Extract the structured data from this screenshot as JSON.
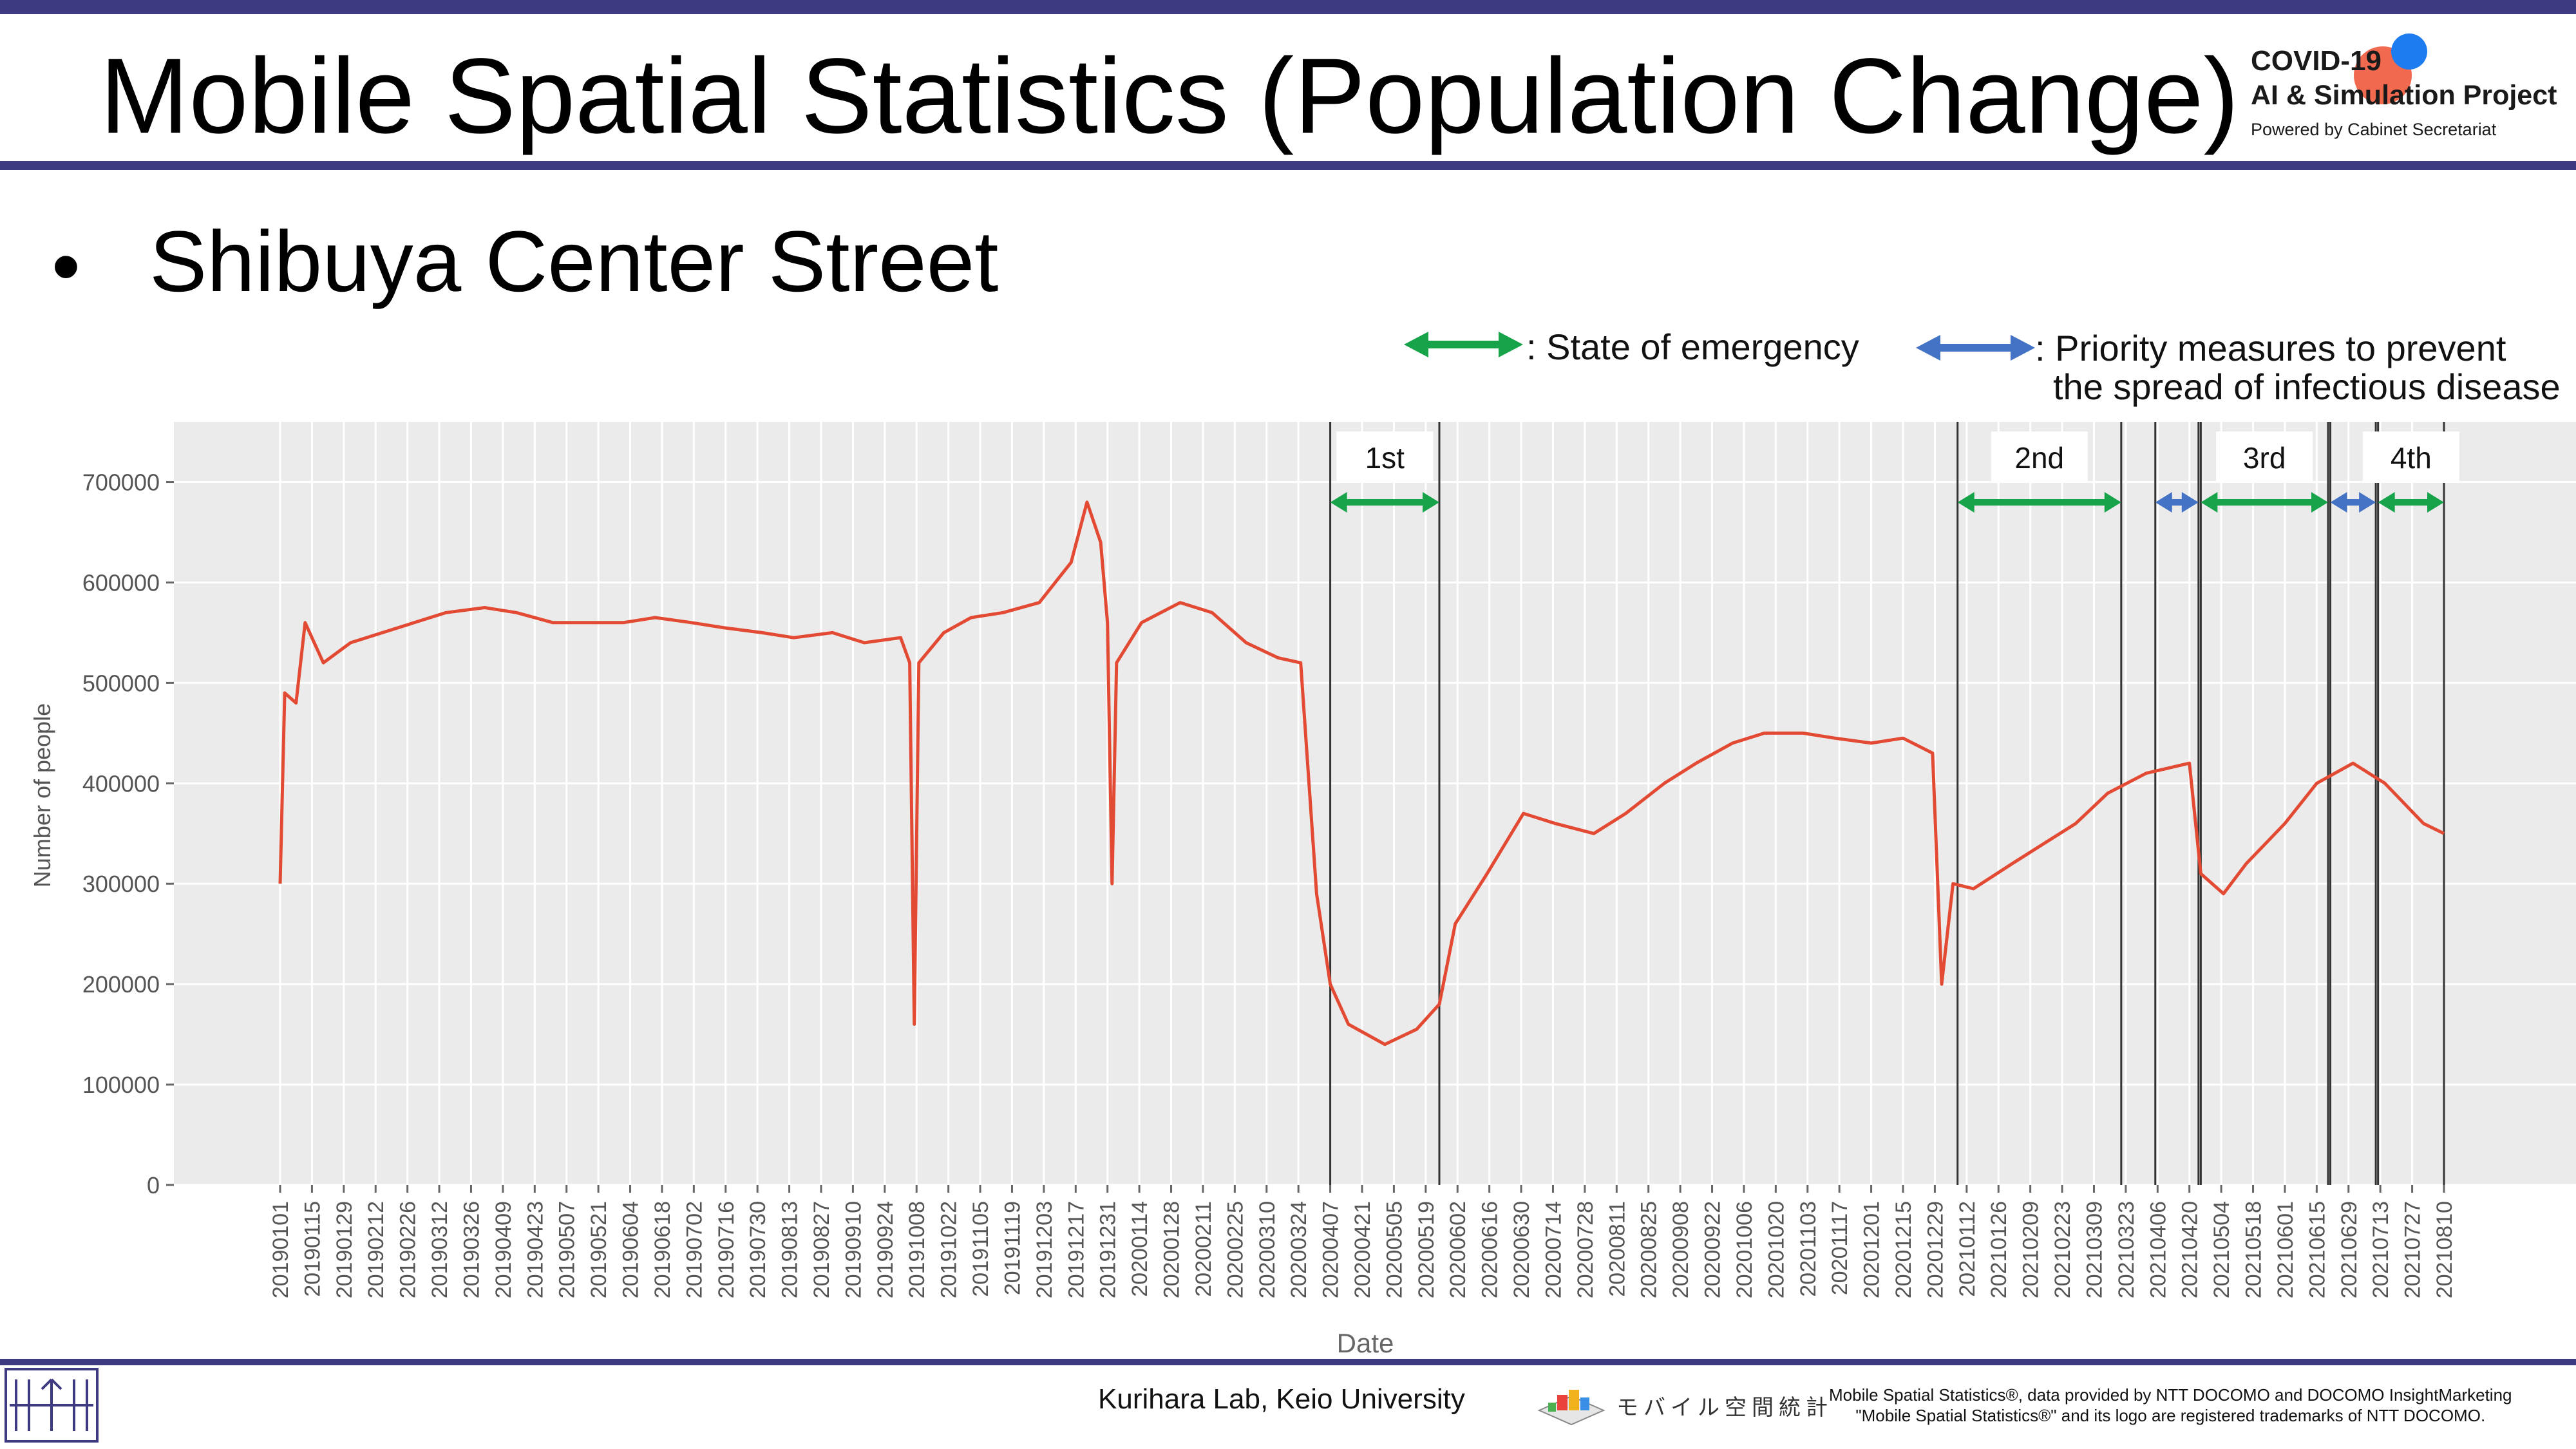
{
  "header": {
    "title": "Mobile Spatial Statistics (Population Change)",
    "logo_line1": "COVID-19",
    "logo_line2": "AI & Simulation Project",
    "logo_line3": "Powered by Cabinet Secretariat"
  },
  "bullet": "•",
  "subtitle": "Shibuya Center Street",
  "legend": {
    "emergency_label": ": State of emergency",
    "priority_label_1": ": Priority measures to prevent",
    "priority_label_2": "the spread of infectious disease",
    "emergency_color": "#16a34a",
    "priority_color": "#4472c4"
  },
  "footer": {
    "lab": "Kurihara Lab, Keio University",
    "mobile_logo_text": "モバイル空間統計",
    "note_line1": "Mobile Spatial Statistics®, data provided by NTT DOCOMO and DOCOMO InsightMarketing",
    "note_line2": "\"Mobile Spatial Statistics®\" and its logo are registered trademarks of NTT DOCOMO."
  },
  "chart_data": {
    "type": "line",
    "xlabel": "Date",
    "ylabel": "Number of people",
    "ylim": [
      0,
      760000
    ],
    "yticks": [
      0,
      100000,
      200000,
      300000,
      400000,
      500000,
      600000,
      700000
    ],
    "grid": true,
    "line_color": "#e34a33",
    "panel_color": "#ebebeb",
    "x_start": "20190101",
    "x_end": "20210810",
    "x_tick_labels": [
      "20190101",
      "20190115",
      "20190129",
      "20190212",
      "20190226",
      "20190312",
      "20190326",
      "20190409",
      "20190423",
      "20190507",
      "20190521",
      "20190604",
      "20190618",
      "20190702",
      "20190716",
      "20190730",
      "20190813",
      "20190827",
      "20190910",
      "20190924",
      "20191008",
      "20191022",
      "20191105",
      "20191119",
      "20191203",
      "20191217",
      "20191231",
      "20200114",
      "20200128",
      "20200211",
      "20200225",
      "20200310",
      "20200324",
      "20200407",
      "20200421",
      "20200505",
      "20200519",
      "20200602",
      "20200616",
      "20200630",
      "20200714",
      "20200728",
      "20200811",
      "20200825",
      "20200908",
      "20200922",
      "20201006",
      "20201020",
      "20201103",
      "20201117",
      "20201201",
      "20201215",
      "20201229",
      "20210112",
      "20210126",
      "20210209",
      "20210223",
      "20210309",
      "20210323",
      "20210406",
      "20210420",
      "20210504",
      "20210518",
      "20210601",
      "20210615",
      "20210629",
      "20210713",
      "20210727",
      "20210810"
    ],
    "series": [
      {
        "values_by_date": [
          [
            "20190101",
            300000
          ],
          [
            "20190103",
            490000
          ],
          [
            "20190108",
            480000
          ],
          [
            "20190112",
            560000
          ],
          [
            "20190120",
            520000
          ],
          [
            "20190201",
            540000
          ],
          [
            "20190215",
            550000
          ],
          [
            "20190301",
            560000
          ],
          [
            "20190315",
            570000
          ],
          [
            "20190401",
            575000
          ],
          [
            "20190415",
            570000
          ],
          [
            "20190501",
            560000
          ],
          [
            "20190515",
            560000
          ],
          [
            "20190601",
            560000
          ],
          [
            "20190615",
            565000
          ],
          [
            "20190701",
            560000
          ],
          [
            "20190715",
            555000
          ],
          [
            "20190801",
            550000
          ],
          [
            "20190815",
            545000
          ],
          [
            "20190901",
            550000
          ],
          [
            "20190915",
            540000
          ],
          [
            "20191001",
            545000
          ],
          [
            "20191005",
            520000
          ],
          [
            "20191007",
            160000
          ],
          [
            "20191009",
            520000
          ],
          [
            "20191020",
            550000
          ],
          [
            "20191101",
            565000
          ],
          [
            "20191115",
            570000
          ],
          [
            "20191201",
            580000
          ],
          [
            "20191215",
            620000
          ],
          [
            "20191222",
            680000
          ],
          [
            "20191228",
            640000
          ],
          [
            "20191231",
            560000
          ],
          [
            "20200102",
            300000
          ],
          [
            "20200104",
            520000
          ],
          [
            "20200115",
            560000
          ],
          [
            "20200201",
            580000
          ],
          [
            "20200215",
            570000
          ],
          [
            "20200301",
            540000
          ],
          [
            "20200315",
            525000
          ],
          [
            "20200325",
            520000
          ],
          [
            "20200401",
            290000
          ],
          [
            "20200407",
            200000
          ],
          [
            "20200415",
            160000
          ],
          [
            "20200501",
            140000
          ],
          [
            "20200515",
            155000
          ],
          [
            "20200525",
            180000
          ],
          [
            "20200601",
            260000
          ],
          [
            "20200615",
            310000
          ],
          [
            "20200701",
            370000
          ],
          [
            "20200715",
            360000
          ],
          [
            "20200801",
            350000
          ],
          [
            "20200815",
            370000
          ],
          [
            "20200901",
            400000
          ],
          [
            "20200915",
            420000
          ],
          [
            "20201001",
            440000
          ],
          [
            "20201015",
            450000
          ],
          [
            "20201101",
            450000
          ],
          [
            "20201115",
            445000
          ],
          [
            "20201201",
            440000
          ],
          [
            "20201215",
            445000
          ],
          [
            "20201228",
            430000
          ],
          [
            "20210101",
            200000
          ],
          [
            "20210106",
            300000
          ],
          [
            "20210115",
            295000
          ],
          [
            "20210201",
            320000
          ],
          [
            "20210215",
            340000
          ],
          [
            "20210301",
            360000
          ],
          [
            "20210315",
            390000
          ],
          [
            "20210401",
            410000
          ],
          [
            "20210420",
            420000
          ],
          [
            "20210425",
            310000
          ],
          [
            "20210505",
            290000
          ],
          [
            "20210515",
            320000
          ],
          [
            "20210601",
            360000
          ],
          [
            "20210615",
            400000
          ],
          [
            "20210701",
            420000
          ],
          [
            "20210715",
            400000
          ],
          [
            "20210801",
            360000
          ],
          [
            "20210810",
            350000
          ]
        ]
      }
    ],
    "annotations": [
      {
        "label": "1st",
        "type": "State of emergency",
        "start": "20200407",
        "end": "20200525"
      },
      {
        "label": "2nd",
        "type": "State of emergency",
        "start": "20210108",
        "end": "20210321"
      },
      {
        "label": "",
        "type": "Priority measures to prevent the spread of infectious disease",
        "start": "20210405",
        "end": "20210424"
      },
      {
        "label": "3rd",
        "type": "State of emergency",
        "start": "20210425",
        "end": "20210620"
      },
      {
        "label": "",
        "type": "Priority measures to prevent the spread of infectious disease",
        "start": "20210621",
        "end": "20210711"
      },
      {
        "label": "4th",
        "type": "State of emergency",
        "start": "20210712",
        "end": "20210810"
      }
    ]
  }
}
